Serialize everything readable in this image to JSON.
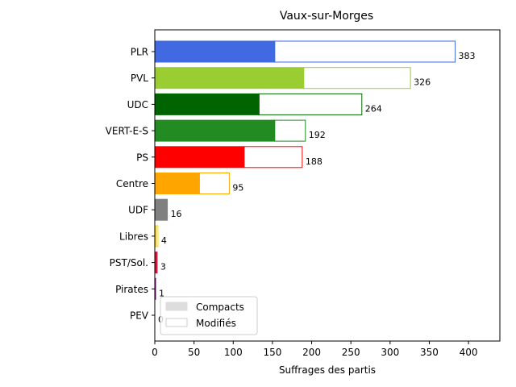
{
  "chart_data": {
    "type": "bar",
    "orientation": "horizontal",
    "title": "Vaux-sur-Morges",
    "xlabel": "Suffrages des partis",
    "ylabel": "",
    "xlim": [
      0,
      440
    ],
    "xticks": [
      0,
      50,
      100,
      150,
      200,
      250,
      300,
      350,
      400
    ],
    "categories": [
      "PLR",
      "PVL",
      "UDC",
      "VERT-E-S",
      "PS",
      "Centre",
      "UDF",
      "Libres",
      "PST/Sol.",
      "Pirates",
      "PEV"
    ],
    "series": [
      {
        "name": "Compacts",
        "values": [
          153,
          190,
          133,
          153,
          114,
          57,
          16,
          2,
          2,
          0,
          0
        ]
      },
      {
        "name": "Modifiés",
        "values": [
          230,
          136,
          131,
          39,
          74,
          38,
          0,
          2,
          1,
          1,
          0
        ]
      }
    ],
    "totals": [
      383,
      326,
      264,
      192,
      188,
      95,
      16,
      4,
      3,
      1,
      0
    ],
    "colors": [
      "#4169E1",
      "#9ACD32",
      "#006400",
      "#228B22",
      "#FF0000",
      "#FFA500",
      "#808080",
      "#FFD700",
      "#DC143C",
      "#800080",
      "#FFD700"
    ],
    "legend": {
      "placement": "lower-left",
      "entries": [
        {
          "label": "Compacts",
          "color": "#dddddd"
        },
        {
          "label": "Modifiés",
          "color": "#ffffff"
        }
      ]
    },
    "grid": false
  }
}
